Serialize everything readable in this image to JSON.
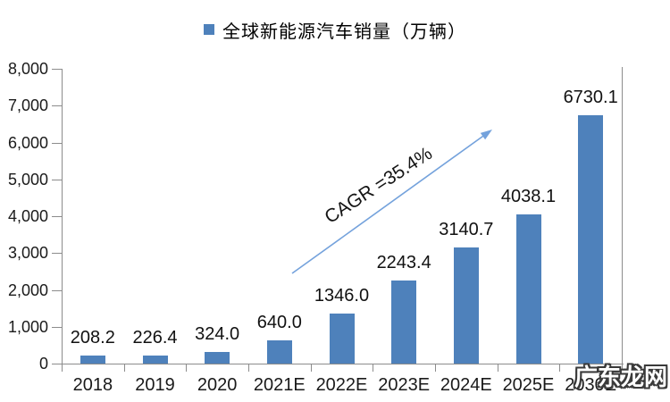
{
  "legend": {
    "label": "全球新能源汽车销量（万辆）"
  },
  "chart_data": {
    "type": "bar",
    "title": "全球新能源汽车销量（万辆）",
    "categories": [
      "2018",
      "2019",
      "2020",
      "2021E",
      "2022E",
      "2023E",
      "2024E",
      "2025E",
      "2030E"
    ],
    "values": [
      208.2,
      226.4,
      324.0,
      640.0,
      1346.0,
      2243.4,
      3140.7,
      4038.1,
      6730.1
    ],
    "value_labels": [
      "208.2",
      "226.4",
      "324.0",
      "640.0",
      "1346.0",
      "2243.4",
      "3140.7",
      "4038.1",
      "6730.1"
    ],
    "ylim": [
      0,
      8000
    ],
    "ytick_interval": 1000,
    "ytick_labels": [
      "0",
      "1,000",
      "2,000",
      "3,000",
      "4,000",
      "5,000",
      "6,000",
      "7,000",
      "8,000"
    ],
    "grid": false,
    "legend_position": "top-center",
    "annotation": {
      "text": "CAGR =35.4%"
    }
  },
  "watermark": {
    "text": "广东龙网"
  },
  "colors": {
    "bar": "#4E81BB",
    "axis": "#8C8C8C",
    "arrow": "#74A2DC",
    "legend_marker": "#4E81BB"
  }
}
